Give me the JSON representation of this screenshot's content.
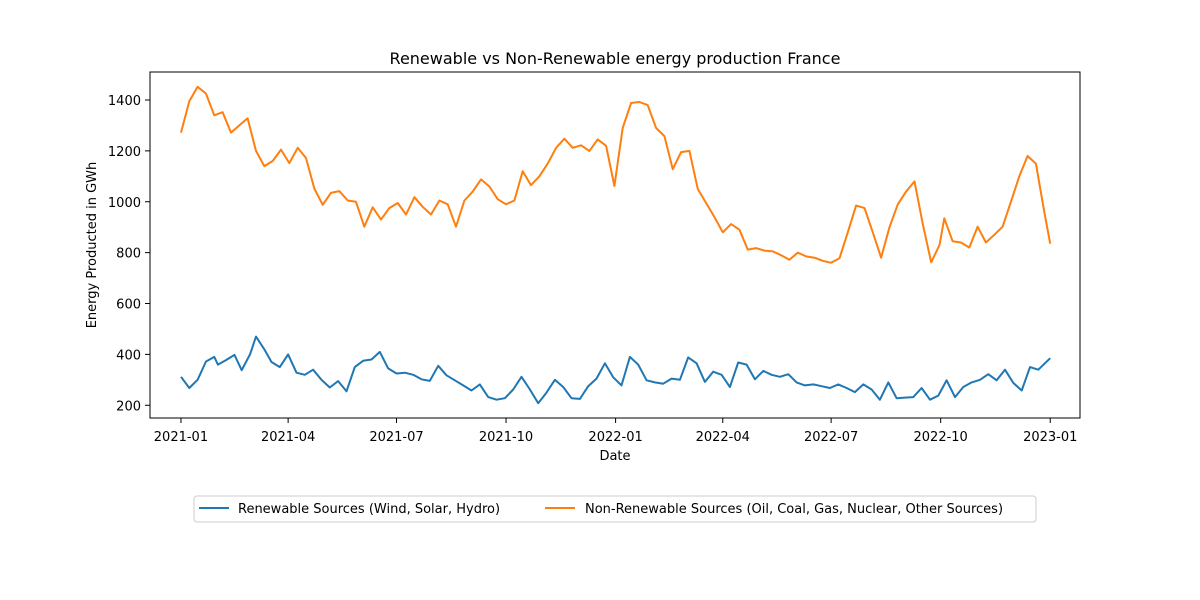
{
  "chart_data": {
    "type": "line",
    "title": "Renewable vs Non-Renewable energy production France",
    "xlabel": "Date",
    "ylabel": "Energy Producted in GWh",
    "x_start": "2021-01-01",
    "x_end": "2023-01-01",
    "xlim": [
      "2020-12-06",
      "2023-01-26"
    ],
    "ylim": [
      150,
      1510
    ],
    "x_ticks": [
      {
        "date": "2021-01-01",
        "label": "2021-01"
      },
      {
        "date": "2021-04-01",
        "label": "2021-04"
      },
      {
        "date": "2021-07-01",
        "label": "2021-07"
      },
      {
        "date": "2021-10-01",
        "label": "2021-10"
      },
      {
        "date": "2022-01-01",
        "label": "2022-01"
      },
      {
        "date": "2022-04-01",
        "label": "2022-04"
      },
      {
        "date": "2022-07-01",
        "label": "2022-07"
      },
      {
        "date": "2022-10-01",
        "label": "2022-10"
      },
      {
        "date": "2023-01-01",
        "label": "2023-01"
      }
    ],
    "y_ticks": [
      200,
      400,
      600,
      800,
      1000,
      1200,
      1400
    ],
    "grid": false,
    "legend_position": "bottom-center",
    "series": [
      {
        "name": "Renewable Sources (Wind, Solar, Hydro)",
        "color": "#1f77b4",
        "points": [
          [
            "2021-01-01",
            312
          ],
          [
            "2021-01-08",
            268
          ],
          [
            "2021-01-15",
            300
          ],
          [
            "2021-01-22",
            372
          ],
          [
            "2021-01-29",
            390
          ],
          [
            "2021-02-01",
            360
          ],
          [
            "2021-02-08",
            378
          ],
          [
            "2021-02-15",
            398
          ],
          [
            "2021-02-21",
            338
          ],
          [
            "2021-02-28",
            400
          ],
          [
            "2021-03-05",
            470
          ],
          [
            "2021-03-12",
            420
          ],
          [
            "2021-03-18",
            370
          ],
          [
            "2021-03-25",
            350
          ],
          [
            "2021-04-01",
            400
          ],
          [
            "2021-04-08",
            328
          ],
          [
            "2021-04-15",
            320
          ],
          [
            "2021-04-22",
            340
          ],
          [
            "2021-04-29",
            300
          ],
          [
            "2021-05-06",
            270
          ],
          [
            "2021-05-13",
            295
          ],
          [
            "2021-05-20",
            255
          ],
          [
            "2021-05-27",
            350
          ],
          [
            "2021-06-03",
            375
          ],
          [
            "2021-06-10",
            380
          ],
          [
            "2021-06-17",
            410
          ],
          [
            "2021-06-24",
            345
          ],
          [
            "2021-07-01",
            325
          ],
          [
            "2021-07-08",
            328
          ],
          [
            "2021-07-15",
            320
          ],
          [
            "2021-07-22",
            302
          ],
          [
            "2021-07-29",
            296
          ],
          [
            "2021-08-05",
            355
          ],
          [
            "2021-08-12",
            318
          ],
          [
            "2021-08-19",
            298
          ],
          [
            "2021-08-26",
            278
          ],
          [
            "2021-09-02",
            258
          ],
          [
            "2021-09-09",
            282
          ],
          [
            "2021-09-16",
            232
          ],
          [
            "2021-09-23",
            222
          ],
          [
            "2021-09-30",
            228
          ],
          [
            "2021-10-07",
            262
          ],
          [
            "2021-10-14",
            312
          ],
          [
            "2021-10-21",
            262
          ],
          [
            "2021-10-28",
            208
          ],
          [
            "2021-11-04",
            250
          ],
          [
            "2021-11-11",
            300
          ],
          [
            "2021-11-18",
            272
          ],
          [
            "2021-11-25",
            228
          ],
          [
            "2021-12-02",
            225
          ],
          [
            "2021-12-09",
            275
          ],
          [
            "2021-12-16",
            305
          ],
          [
            "2021-12-23",
            365
          ],
          [
            "2021-12-30",
            310
          ],
          [
            "2022-01-06",
            278
          ],
          [
            "2022-01-13",
            390
          ],
          [
            "2022-01-20",
            360
          ],
          [
            "2022-01-27",
            298
          ],
          [
            "2022-02-03",
            290
          ],
          [
            "2022-02-10",
            285
          ],
          [
            "2022-02-17",
            305
          ],
          [
            "2022-02-24",
            300
          ],
          [
            "2022-03-03",
            388
          ],
          [
            "2022-03-10",
            365
          ],
          [
            "2022-03-17",
            292
          ],
          [
            "2022-03-24",
            332
          ],
          [
            "2022-03-31",
            320
          ],
          [
            "2022-04-07",
            272
          ],
          [
            "2022-04-14",
            368
          ],
          [
            "2022-04-21",
            360
          ],
          [
            "2022-04-28",
            302
          ],
          [
            "2022-05-05",
            335
          ],
          [
            "2022-05-12",
            320
          ],
          [
            "2022-05-19",
            312
          ],
          [
            "2022-05-26",
            322
          ],
          [
            "2022-06-02",
            290
          ],
          [
            "2022-06-09",
            278
          ],
          [
            "2022-06-16",
            282
          ],
          [
            "2022-06-23",
            275
          ],
          [
            "2022-06-30",
            268
          ],
          [
            "2022-07-07",
            282
          ],
          [
            "2022-07-14",
            268
          ],
          [
            "2022-07-21",
            252
          ],
          [
            "2022-07-28",
            282
          ],
          [
            "2022-08-04",
            262
          ],
          [
            "2022-08-11",
            222
          ],
          [
            "2022-08-18",
            290
          ],
          [
            "2022-08-25",
            228
          ],
          [
            "2022-09-01",
            230
          ],
          [
            "2022-09-08",
            232
          ],
          [
            "2022-09-15",
            268
          ],
          [
            "2022-09-22",
            222
          ],
          [
            "2022-09-29",
            238
          ],
          [
            "2022-10-06",
            298
          ],
          [
            "2022-10-13",
            232
          ],
          [
            "2022-10-20",
            272
          ],
          [
            "2022-10-27",
            290
          ],
          [
            "2022-11-03",
            300
          ],
          [
            "2022-11-10",
            322
          ],
          [
            "2022-11-17",
            298
          ],
          [
            "2022-11-24",
            340
          ],
          [
            "2022-12-01",
            288
          ],
          [
            "2022-12-08",
            258
          ],
          [
            "2022-12-15",
            350
          ],
          [
            "2022-12-22",
            340
          ],
          [
            "2023-01-01",
            385
          ]
        ]
      },
      {
        "name": "Non-Renewable Sources (Oil, Coal, Gas, Nuclear, Other Sources)",
        "color": "#ff7f0e",
        "points": [
          [
            "2021-01-01",
            1272
          ],
          [
            "2021-01-08",
            1395
          ],
          [
            "2021-01-15",
            1452
          ],
          [
            "2021-01-22",
            1425
          ],
          [
            "2021-01-29",
            1340
          ],
          [
            "2021-02-05",
            1352
          ],
          [
            "2021-02-12",
            1272
          ],
          [
            "2021-02-19",
            1300
          ],
          [
            "2021-02-26",
            1328
          ],
          [
            "2021-03-05",
            1200
          ],
          [
            "2021-03-12",
            1140
          ],
          [
            "2021-03-19",
            1160
          ],
          [
            "2021-03-26",
            1205
          ],
          [
            "2021-04-02",
            1152
          ],
          [
            "2021-04-09",
            1212
          ],
          [
            "2021-04-16",
            1172
          ],
          [
            "2021-04-23",
            1052
          ],
          [
            "2021-04-30",
            988
          ],
          [
            "2021-05-07",
            1035
          ],
          [
            "2021-05-14",
            1042
          ],
          [
            "2021-05-21",
            1005
          ],
          [
            "2021-05-28",
            1000
          ],
          [
            "2021-06-04",
            902
          ],
          [
            "2021-06-11",
            978
          ],
          [
            "2021-06-18",
            930
          ],
          [
            "2021-06-25",
            975
          ],
          [
            "2021-07-02",
            995
          ],
          [
            "2021-07-09",
            950
          ],
          [
            "2021-07-16",
            1018
          ],
          [
            "2021-07-23",
            980
          ],
          [
            "2021-07-30",
            950
          ],
          [
            "2021-08-06",
            1005
          ],
          [
            "2021-08-13",
            990
          ],
          [
            "2021-08-20",
            902
          ],
          [
            "2021-08-27",
            1005
          ],
          [
            "2021-09-03",
            1040
          ],
          [
            "2021-09-10",
            1088
          ],
          [
            "2021-09-17",
            1060
          ],
          [
            "2021-09-24",
            1010
          ],
          [
            "2021-10-01",
            990
          ],
          [
            "2021-10-08",
            1005
          ],
          [
            "2021-10-15",
            1120
          ],
          [
            "2021-10-22",
            1065
          ],
          [
            "2021-10-29",
            1100
          ],
          [
            "2021-11-05",
            1150
          ],
          [
            "2021-11-12",
            1212
          ],
          [
            "2021-11-19",
            1248
          ],
          [
            "2021-11-26",
            1212
          ],
          [
            "2021-12-03",
            1222
          ],
          [
            "2021-12-10",
            1200
          ],
          [
            "2021-12-17",
            1245
          ],
          [
            "2021-12-24",
            1220
          ],
          [
            "2021-12-31",
            1062
          ],
          [
            "2022-01-07",
            1290
          ],
          [
            "2022-01-14",
            1388
          ],
          [
            "2022-01-21",
            1392
          ],
          [
            "2022-01-28",
            1380
          ],
          [
            "2022-02-04",
            1290
          ],
          [
            "2022-02-11",
            1258
          ],
          [
            "2022-02-18",
            1128
          ],
          [
            "2022-02-25",
            1195
          ],
          [
            "2022-03-04",
            1200
          ],
          [
            "2022-03-11",
            1050
          ],
          [
            "2022-03-18",
            995
          ],
          [
            "2022-03-25",
            940
          ],
          [
            "2022-04-01",
            880
          ],
          [
            "2022-04-08",
            912
          ],
          [
            "2022-04-15",
            890
          ],
          [
            "2022-04-22",
            812
          ],
          [
            "2022-04-29",
            818
          ],
          [
            "2022-05-06",
            808
          ],
          [
            "2022-05-13",
            805
          ],
          [
            "2022-05-20",
            790
          ],
          [
            "2022-05-27",
            772
          ],
          [
            "2022-06-03",
            800
          ],
          [
            "2022-06-10",
            785
          ],
          [
            "2022-06-17",
            780
          ],
          [
            "2022-06-24",
            768
          ],
          [
            "2022-07-01",
            760
          ],
          [
            "2022-07-08",
            778
          ],
          [
            "2022-07-15",
            880
          ],
          [
            "2022-07-22",
            985
          ],
          [
            "2022-07-29",
            975
          ],
          [
            "2022-08-05",
            880
          ],
          [
            "2022-08-12",
            780
          ],
          [
            "2022-08-19",
            900
          ],
          [
            "2022-08-26",
            990
          ],
          [
            "2022-09-02",
            1040
          ],
          [
            "2022-09-09",
            1080
          ],
          [
            "2022-09-16",
            912
          ],
          [
            "2022-09-23",
            762
          ],
          [
            "2022-09-30",
            830
          ],
          [
            "2022-10-04",
            935
          ],
          [
            "2022-10-11",
            845
          ],
          [
            "2022-10-18",
            840
          ],
          [
            "2022-10-25",
            820
          ],
          [
            "2022-11-01",
            902
          ],
          [
            "2022-11-08",
            840
          ],
          [
            "2022-11-15",
            870
          ],
          [
            "2022-11-22",
            902
          ],
          [
            "2022-11-29",
            1000
          ],
          [
            "2022-12-06",
            1100
          ],
          [
            "2022-12-13",
            1180
          ],
          [
            "2022-12-20",
            1150
          ],
          [
            "2022-12-27",
            960
          ],
          [
            "2023-01-01",
            835
          ]
        ]
      }
    ]
  }
}
